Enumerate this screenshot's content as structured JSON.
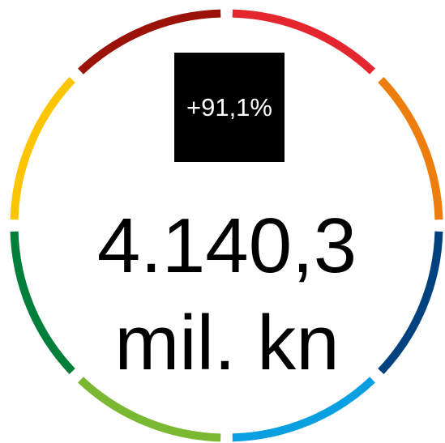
{
  "badge": "+91,1%",
  "value": "4.140,3",
  "unit": "mil. kn"
}
